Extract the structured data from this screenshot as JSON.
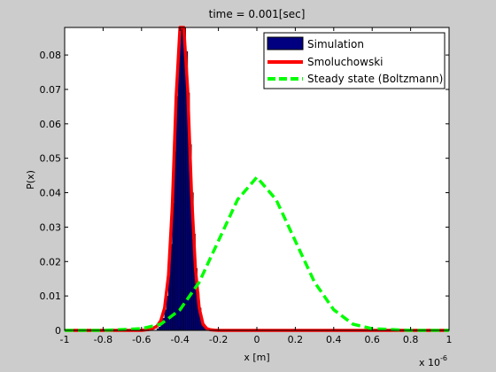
{
  "window": {
    "background": "#cccccc"
  },
  "chart_data": {
    "type": "bar",
    "title": "time = 0.001[sec]",
    "xlabel": "x [m]",
    "ylabel": "P(x)",
    "x_exponent_label": "x 10",
    "x_exponent_power": "-6",
    "xlim": [
      -1,
      1
    ],
    "ylim": [
      0,
      0.088
    ],
    "x_unit_scale": 1e-06,
    "grid": false,
    "legend_placement": "top-right",
    "xticks": [
      -1,
      -0.8,
      -0.6,
      -0.4,
      -0.2,
      0,
      0.2,
      0.4,
      0.6,
      0.8,
      1
    ],
    "xtick_labels": [
      "-1",
      "-0.8",
      "-0.6",
      "-0.4",
      "-0.2",
      "0",
      "0.2",
      "0.4",
      "0.6",
      "0.8",
      "1"
    ],
    "yticks": [
      0,
      0.01,
      0.02,
      0.03,
      0.04,
      0.05,
      0.06,
      0.07,
      0.08
    ],
    "ytick_labels": [
      "0",
      "0.01",
      "0.02",
      "0.03",
      "0.04",
      "0.05",
      "0.06",
      "0.07",
      "0.08"
    ],
    "series": [
      {
        "name": "Simulation",
        "kind": "histogram",
        "color": "#000080",
        "edge_color": "#000000",
        "bin_width": 0.01,
        "bins": [
          [
            -0.52,
            0.0005
          ],
          [
            -0.51,
            0.001
          ],
          [
            -0.5,
            0.002
          ],
          [
            -0.49,
            0.0035
          ],
          [
            -0.48,
            0.006
          ],
          [
            -0.47,
            0.01
          ],
          [
            -0.46,
            0.016
          ],
          [
            -0.45,
            0.025
          ],
          [
            -0.44,
            0.037
          ],
          [
            -0.43,
            0.052
          ],
          [
            -0.42,
            0.068
          ],
          [
            -0.41,
            0.082
          ],
          [
            -0.4,
            0.09
          ],
          [
            -0.39,
            0.093
          ],
          [
            -0.38,
            0.09
          ],
          [
            -0.37,
            0.081
          ],
          [
            -0.36,
            0.069
          ],
          [
            -0.35,
            0.054
          ],
          [
            -0.34,
            0.04
          ],
          [
            -0.33,
            0.028
          ],
          [
            -0.32,
            0.018
          ],
          [
            -0.31,
            0.011
          ],
          [
            -0.3,
            0.0065
          ],
          [
            -0.29,
            0.0035
          ],
          [
            -0.28,
            0.0018
          ],
          [
            -0.27,
            0.0008
          ],
          [
            -0.26,
            0.0004
          ]
        ]
      },
      {
        "name": "Smoluchowski",
        "kind": "line",
        "color": "#ff0000",
        "dash": "solid",
        "x": [
          -1,
          -0.6,
          -0.55,
          -0.52,
          -0.5,
          -0.48,
          -0.46,
          -0.44,
          -0.42,
          -0.4,
          -0.39,
          -0.38,
          -0.36,
          -0.34,
          -0.32,
          -0.3,
          -0.28,
          -0.26,
          -0.24,
          -0.22,
          -0.2,
          -0.15,
          1
        ],
        "y": [
          0,
          0,
          0.0003,
          0.0012,
          0.0028,
          0.0065,
          0.016,
          0.036,
          0.068,
          0.09,
          0.093,
          0.09,
          0.07,
          0.04,
          0.018,
          0.0065,
          0.0018,
          0.0005,
          0.00015,
          5e-05,
          0,
          0,
          0
        ]
      },
      {
        "name": "Steady state (Boltzmann)",
        "kind": "line",
        "color": "#00ff00",
        "dash": "dashed",
        "x": [
          -1,
          -0.8,
          -0.6,
          -0.5,
          -0.4,
          -0.3,
          -0.2,
          -0.1,
          0,
          0.1,
          0.2,
          0.3,
          0.4,
          0.5,
          0.6,
          0.8,
          1
        ],
        "y": [
          0,
          0,
          0.0005,
          0.0018,
          0.006,
          0.014,
          0.026,
          0.038,
          0.0445,
          0.038,
          0.026,
          0.014,
          0.006,
          0.0018,
          0.0005,
          0,
          0
        ]
      }
    ]
  }
}
